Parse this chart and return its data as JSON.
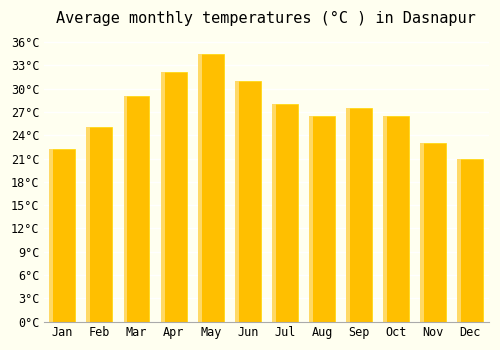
{
  "title": "Average monthly temperatures (°C ) in Dasnapur",
  "months": [
    "Jan",
    "Feb",
    "Mar",
    "Apr",
    "May",
    "Jun",
    "Jul",
    "Aug",
    "Sep",
    "Oct",
    "Nov",
    "Dec"
  ],
  "values": [
    22.2,
    25.0,
    29.0,
    32.2,
    34.5,
    31.0,
    28.0,
    26.5,
    27.5,
    26.5,
    23.0,
    21.0
  ],
  "bar_color": "#FFBF00",
  "bar_edge_color": "#FFD700",
  "ylim": [
    0,
    37
  ],
  "yticks": [
    0,
    3,
    6,
    9,
    12,
    15,
    18,
    21,
    24,
    27,
    30,
    33,
    36
  ],
  "ytick_labels": [
    "0°C",
    "3°C",
    "6°C",
    "9°C",
    "12°C",
    "15°C",
    "18°C",
    "21°C",
    "24°C",
    "27°C",
    "30°C",
    "33°C",
    "36°C"
  ],
  "background_color": "#FFFFF0",
  "grid_color": "#FFFFFF",
  "title_fontsize": 11,
  "tick_fontsize": 8.5,
  "font_family": "monospace"
}
